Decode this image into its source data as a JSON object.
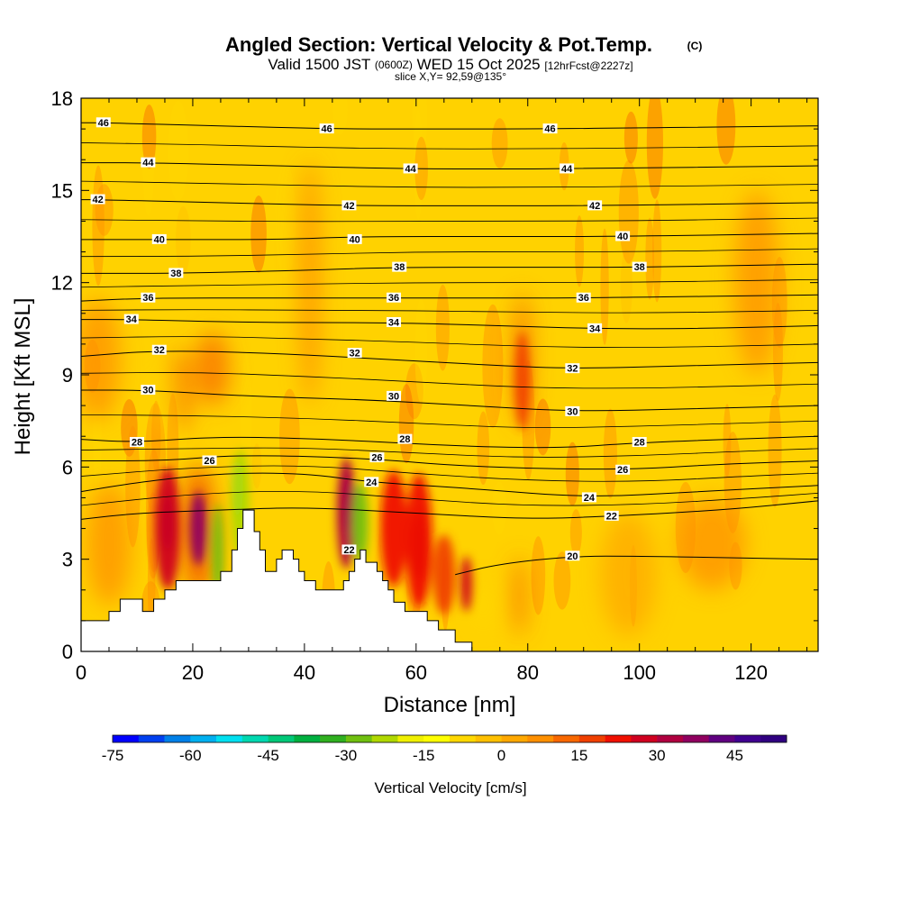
{
  "chart_data": {
    "type": "heatmap",
    "title": "Angled Section: Vertical Velocity & Pot.Temp.",
    "title_mark": "(C)",
    "subtitle": {
      "valid_prefix": "Valid 1500 JST",
      "utc": "(0600Z)",
      "date": "WED 15 Oct 2025",
      "forecast": "[12hrFcst@2227z]"
    },
    "slice_label": "slice X,Y= 92,59@135°",
    "xlabel": "Distance [nm]",
    "ylabel": "Height [Kft MSL]",
    "xlim": [
      0,
      132
    ],
    "ylim": [
      0,
      18
    ],
    "x_ticks": [
      0,
      20,
      40,
      60,
      80,
      100,
      120
    ],
    "y_ticks": [
      0,
      3,
      6,
      9,
      12,
      15,
      18
    ],
    "colorbar": {
      "label": "Vertical Velocity [cm/s]",
      "min": -75,
      "max": 55,
      "step": 5,
      "tick_values": [
        -75,
        -60,
        -45,
        -30,
        -15,
        0,
        15,
        30,
        45
      ],
      "colors": [
        "#0000ff",
        "#0040f0",
        "#0080e8",
        "#00b0f0",
        "#00e0f0",
        "#00d8b0",
        "#00c878",
        "#00b040",
        "#30b020",
        "#70c010",
        "#b0d800",
        "#f0f000",
        "#ffff00",
        "#ffd800",
        "#ffc000",
        "#ffa800",
        "#ff9000",
        "#f86800",
        "#f04000",
        "#f01000",
        "#d00020",
        "#b00040",
        "#900060",
        "#600080",
        "#400090",
        "#300080"
      ]
    },
    "terrain": [
      [
        0,
        0.6
      ],
      [
        0,
        1
      ],
      [
        5,
        1
      ],
      [
        5,
        1.3
      ],
      [
        7,
        1.3
      ],
      [
        7,
        1.7
      ],
      [
        11,
        1.7
      ],
      [
        11,
        1.3
      ],
      [
        13,
        1.3
      ],
      [
        13,
        1.7
      ],
      [
        15,
        1.7
      ],
      [
        15,
        2
      ],
      [
        17,
        2
      ],
      [
        17,
        2.3
      ],
      [
        25,
        2.3
      ],
      [
        25,
        2.6
      ],
      [
        27,
        2.6
      ],
      [
        27,
        3.3
      ],
      [
        28,
        3.3
      ],
      [
        28,
        4
      ],
      [
        29,
        4
      ],
      [
        29,
        4.6
      ],
      [
        31,
        4.6
      ],
      [
        31,
        3.9
      ],
      [
        32,
        3.9
      ],
      [
        32,
        3.3
      ],
      [
        33,
        3.3
      ],
      [
        33,
        2.6
      ],
      [
        35,
        2.6
      ],
      [
        35,
        3
      ],
      [
        36,
        3
      ],
      [
        36,
        3.3
      ],
      [
        38,
        3.3
      ],
      [
        38,
        3
      ],
      [
        39,
        3
      ],
      [
        39,
        2.6
      ],
      [
        40,
        2.6
      ],
      [
        40,
        2.3
      ],
      [
        42,
        2.3
      ],
      [
        42,
        2
      ],
      [
        47,
        2
      ],
      [
        47,
        2.3
      ],
      [
        48,
        2.3
      ],
      [
        48,
        2.6
      ],
      [
        49,
        2.6
      ],
      [
        49,
        3
      ],
      [
        50,
        3
      ],
      [
        50,
        3.3
      ],
      [
        51,
        3.3
      ],
      [
        51,
        2.9
      ],
      [
        53,
        2.9
      ],
      [
        53,
        2.6
      ],
      [
        54,
        2.6
      ],
      [
        54,
        2.3
      ],
      [
        55,
        2.3
      ],
      [
        55,
        2
      ],
      [
        56,
        2
      ],
      [
        56,
        1.6
      ],
      [
        58,
        1.6
      ],
      [
        58,
        1.3
      ],
      [
        62,
        1.3
      ],
      [
        62,
        1
      ],
      [
        64,
        1
      ],
      [
        64,
        0.7
      ],
      [
        67,
        0.7
      ],
      [
        67,
        0.3
      ],
      [
        70,
        0.3
      ],
      [
        70,
        0
      ],
      [
        132,
        0
      ],
      [
        132,
        0.3
      ]
    ],
    "isentropes": [
      {
        "value": 20,
        "label_at": [
          88,
          3.1
        ],
        "points": [
          [
            67,
            2.5
          ],
          [
            75,
            2.85
          ],
          [
            88,
            3.1
          ],
          [
            100,
            3.1
          ],
          [
            115,
            3.05
          ],
          [
            132,
            3.0
          ]
        ]
      },
      {
        "value": 22,
        "label_at": [
          95,
          4.4
        ],
        "points": [
          [
            0,
            4.3
          ],
          [
            10,
            4.5
          ],
          [
            25,
            4.6
          ],
          [
            40,
            4.7
          ],
          [
            60,
            4.5
          ],
          [
            80,
            4.3
          ],
          [
            95,
            4.4
          ],
          [
            115,
            4.6
          ],
          [
            132,
            4.9
          ]
        ]
      },
      {
        "value": 24,
        "label_at": [
          91,
          5.0
        ],
        "points": [
          [
            0,
            5.2
          ],
          [
            10,
            5.5
          ],
          [
            25,
            5.8
          ],
          [
            40,
            5.8
          ],
          [
            52,
            5.5
          ],
          [
            70,
            5.3
          ],
          [
            91,
            5.0
          ],
          [
            110,
            5.2
          ],
          [
            132,
            5.4
          ]
        ]
      },
      {
        "value": 26,
        "label_at": [
          97,
          5.9
        ],
        "points": [
          [
            0,
            6.2
          ],
          [
            15,
            6.2
          ],
          [
            28,
            6.4
          ],
          [
            50,
            6.3
          ],
          [
            70,
            6.0
          ],
          [
            97,
            5.9
          ],
          [
            115,
            6.1
          ],
          [
            132,
            6.2
          ]
        ]
      },
      {
        "value": 28,
        "label_at": [
          100,
          6.8
        ],
        "points": [
          [
            0,
            6.9
          ],
          [
            10,
            6.8
          ],
          [
            25,
            7.0
          ],
          [
            45,
            6.9
          ],
          [
            65,
            6.7
          ],
          [
            85,
            6.6
          ],
          [
            100,
            6.8
          ],
          [
            132,
            7.0
          ]
        ]
      },
      {
        "value": 30,
        "label_at": [
          88,
          7.8
        ],
        "points": [
          [
            0,
            8.5
          ],
          [
            12,
            8.5
          ],
          [
            30,
            8.3
          ],
          [
            50,
            8.2
          ],
          [
            70,
            8.0
          ],
          [
            88,
            7.8
          ],
          [
            110,
            7.9
          ],
          [
            132,
            8.0
          ]
        ]
      },
      {
        "value": 32,
        "label_at": [
          88,
          9.2
        ],
        "points": [
          [
            0,
            9.6
          ],
          [
            14,
            9.8
          ],
          [
            35,
            9.7
          ],
          [
            55,
            9.5
          ],
          [
            75,
            9.3
          ],
          [
            88,
            9.2
          ],
          [
            110,
            9.3
          ],
          [
            132,
            9.4
          ]
        ]
      },
      {
        "value": 34,
        "label_at": [
          92,
          10.5
        ],
        "points": [
          [
            0,
            10.8
          ],
          [
            9,
            10.8
          ],
          [
            30,
            10.7
          ],
          [
            55,
            10.7
          ],
          [
            75,
            10.6
          ],
          [
            92,
            10.5
          ],
          [
            110,
            10.5
          ],
          [
            132,
            10.6
          ]
        ]
      },
      {
        "value": 36,
        "label_at": [
          90,
          11.5
        ],
        "points": [
          [
            0,
            11.4
          ],
          [
            12,
            11.5
          ],
          [
            35,
            11.5
          ],
          [
            56,
            11.5
          ],
          [
            75,
            11.5
          ],
          [
            90,
            11.5
          ],
          [
            132,
            11.6
          ]
        ]
      },
      {
        "value": 38,
        "label_at": [
          100,
          12.5
        ],
        "points": [
          [
            0,
            12.3
          ],
          [
            17,
            12.3
          ],
          [
            40,
            12.4
          ],
          [
            56,
            12.5
          ],
          [
            80,
            12.5
          ],
          [
            100,
            12.5
          ],
          [
            132,
            12.6
          ]
        ]
      },
      {
        "value": 40,
        "label_at": [
          97,
          13.5
        ],
        "points": [
          [
            0,
            13.4
          ],
          [
            14,
            13.4
          ],
          [
            35,
            13.4
          ],
          [
            50,
            13.5
          ],
          [
            75,
            13.5
          ],
          [
            97,
            13.5
          ],
          [
            132,
            13.6
          ]
        ]
      },
      {
        "value": 42,
        "label_at": [
          92,
          14.5
        ],
        "points": [
          [
            0,
            14.7
          ],
          [
            3,
            14.7
          ],
          [
            25,
            14.6
          ],
          [
            48,
            14.5
          ],
          [
            70,
            14.5
          ],
          [
            92,
            14.5
          ],
          [
            132,
            14.6
          ]
        ]
      },
      {
        "value": 44,
        "label_at": [
          87,
          15.7
        ],
        "points": [
          [
            0,
            15.9
          ],
          [
            12,
            15.9
          ],
          [
            35,
            15.8
          ],
          [
            59,
            15.7
          ],
          [
            75,
            15.7
          ],
          [
            87,
            15.7
          ],
          [
            132,
            15.8
          ]
        ]
      },
      {
        "value": 46,
        "label_at": [
          84,
          17.0
        ],
        "points": [
          [
            0,
            17.2
          ],
          [
            4,
            17.2
          ],
          [
            25,
            17.1
          ],
          [
            45,
            17.0
          ],
          [
            65,
            17.0
          ],
          [
            84,
            17.0
          ],
          [
            132,
            17.1
          ]
        ]
      }
    ],
    "contour_labels": [
      {
        "value": 46,
        "at": [
          4,
          17.2
        ]
      },
      {
        "value": 46,
        "at": [
          44,
          17.0
        ]
      },
      {
        "value": 46,
        "at": [
          84,
          17.0
        ]
      },
      {
        "value": 44,
        "at": [
          12,
          15.9
        ]
      },
      {
        "value": 44,
        "at": [
          59,
          15.7
        ]
      },
      {
        "value": 44,
        "at": [
          87,
          15.7
        ]
      },
      {
        "value": 42,
        "at": [
          3,
          14.7
        ]
      },
      {
        "value": 42,
        "at": [
          48,
          14.5
        ]
      },
      {
        "value": 42,
        "at": [
          92,
          14.5
        ]
      },
      {
        "value": 40,
        "at": [
          14,
          13.4
        ]
      },
      {
        "value": 40,
        "at": [
          49,
          13.4
        ]
      },
      {
        "value": 40,
        "at": [
          97,
          13.5
        ]
      },
      {
        "value": 38,
        "at": [
          17,
          12.3
        ]
      },
      {
        "value": 38,
        "at": [
          57,
          12.5
        ]
      },
      {
        "value": 38,
        "at": [
          100,
          12.5
        ]
      },
      {
        "value": 36,
        "at": [
          12,
          11.5
        ]
      },
      {
        "value": 36,
        "at": [
          56,
          11.5
        ]
      },
      {
        "value": 36,
        "at": [
          90,
          11.5
        ]
      },
      {
        "value": 34,
        "at": [
          9,
          10.8
        ]
      },
      {
        "value": 34,
        "at": [
          56,
          10.7
        ]
      },
      {
        "value": 34,
        "at": [
          92,
          10.5
        ]
      },
      {
        "value": 32,
        "at": [
          14,
          9.8
        ]
      },
      {
        "value": 32,
        "at": [
          49,
          9.7
        ]
      },
      {
        "value": 32,
        "at": [
          88,
          9.2
        ]
      },
      {
        "value": 30,
        "at": [
          12,
          8.5
        ]
      },
      {
        "value": 30,
        "at": [
          56,
          8.3
        ]
      },
      {
        "value": 30,
        "at": [
          88,
          7.8
        ]
      },
      {
        "value": 28,
        "at": [
          10,
          6.8
        ]
      },
      {
        "value": 28,
        "at": [
          58,
          6.9
        ]
      },
      {
        "value": 28,
        "at": [
          100,
          6.8
        ]
      },
      {
        "value": 26,
        "at": [
          23,
          6.2
        ]
      },
      {
        "value": 26,
        "at": [
          53,
          6.3
        ]
      },
      {
        "value": 26,
        "at": [
          97,
          5.9
        ]
      },
      {
        "value": 24,
        "at": [
          52,
          5.5
        ]
      },
      {
        "value": 24,
        "at": [
          91,
          5.0
        ]
      },
      {
        "value": 22,
        "at": [
          48,
          3.3
        ]
      },
      {
        "value": 22,
        "at": [
          95,
          4.4
        ]
      },
      {
        "value": 20,
        "at": [
          88,
          3.1
        ]
      }
    ],
    "velocity_cells": [
      {
        "x": 15.5,
        "y": 4.2,
        "rx": 1.3,
        "ry": 0.9,
        "v": 40
      },
      {
        "x": 15.5,
        "y": 4.0,
        "rx": 2.3,
        "ry": 2.0,
        "v": 25
      },
      {
        "x": 21,
        "y": 4.0,
        "rx": 1.5,
        "ry": 1.2,
        "v": 35
      },
      {
        "x": 21,
        "y": 3.9,
        "rx": 2.8,
        "ry": 2.2,
        "v": 18
      },
      {
        "x": 24.5,
        "y": 3.2,
        "rx": 1.0,
        "ry": 1.6,
        "v": -28
      },
      {
        "x": 28,
        "y": 5.3,
        "rx": 1.0,
        "ry": 1.0,
        "v": -50
      },
      {
        "x": 28.5,
        "y": 4.8,
        "rx": 1.6,
        "ry": 1.8,
        "v": -22
      },
      {
        "x": 47.5,
        "y": 4.8,
        "rx": 0.9,
        "ry": 0.9,
        "v": 50
      },
      {
        "x": 47.5,
        "y": 4.5,
        "rx": 1.7,
        "ry": 1.8,
        "v": 30
      },
      {
        "x": 50,
        "y": 4.2,
        "rx": 1.4,
        "ry": 1.3,
        "v": -30
      },
      {
        "x": 56,
        "y": 4.0,
        "rx": 2.4,
        "ry": 1.9,
        "v": 20
      },
      {
        "x": 60.5,
        "y": 3.5,
        "rx": 1.3,
        "ry": 1.1,
        "v": 35
      },
      {
        "x": 60.5,
        "y": 3.6,
        "rx": 2.4,
        "ry": 2.2,
        "v": 20
      },
      {
        "x": 65,
        "y": 2.5,
        "rx": 2.0,
        "ry": 1.3,
        "v": 18
      },
      {
        "x": 69,
        "y": 2.2,
        "rx": 1.0,
        "ry": 0.9,
        "v": 25
      },
      {
        "x": 79,
        "y": 8.8,
        "rx": 1.3,
        "ry": 1.6,
        "v": 18
      },
      {
        "x": 79,
        "y": 9.5,
        "rx": 1.6,
        "ry": 2.2,
        "v": 10
      },
      {
        "x": 78.5,
        "y": 1.8,
        "rx": 1.2,
        "ry": 1.3,
        "v": 12
      },
      {
        "x": 23.5,
        "y": 9.2,
        "rx": 3.0,
        "ry": 1.2,
        "v": 12
      },
      {
        "x": 18,
        "y": 8.5,
        "rx": 1.6,
        "ry": 1.4,
        "v": 12
      },
      {
        "x": 15,
        "y": 8.0,
        "rx": 1.0,
        "ry": 0.9,
        "v": -10
      },
      {
        "x": 3,
        "y": 9.5,
        "rx": 4.0,
        "ry": 2.0,
        "v": 8
      },
      {
        "x": 5,
        "y": 3.5,
        "rx": 4.0,
        "ry": 2.0,
        "v": 6
      },
      {
        "x": 98,
        "y": 2.5,
        "rx": 5.0,
        "ry": 2.0,
        "v": 4
      },
      {
        "x": 113,
        "y": 3.5,
        "rx": 6.0,
        "ry": 1.5,
        "v": 6
      },
      {
        "x": 72,
        "y": 1.5,
        "rx": 1.2,
        "ry": 0.8,
        "v": -10
      },
      {
        "x": 41,
        "y": 12.0,
        "rx": 2.0,
        "ry": 4.0,
        "v": 6
      },
      {
        "x": 121,
        "y": 12.0,
        "rx": 4.0,
        "ry": 3.0,
        "v": 5
      }
    ]
  }
}
